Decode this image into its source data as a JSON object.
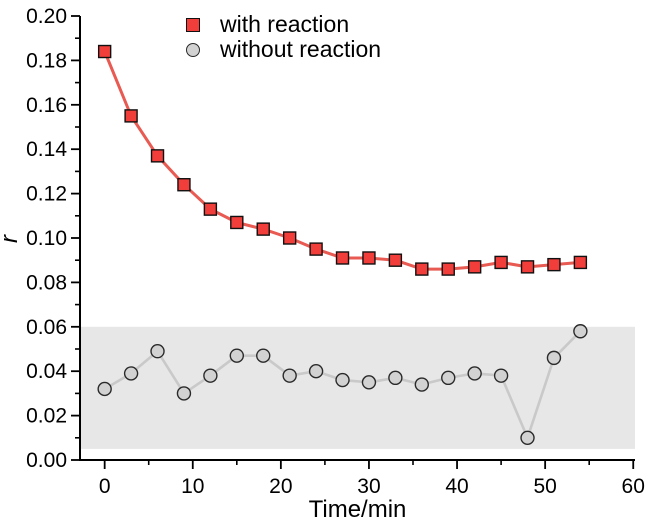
{
  "chart_data": {
    "type": "line",
    "title": "",
    "xlabel": "Time/min",
    "ylabel": "r",
    "xlim": [
      -2.8,
      60.2
    ],
    "ylim": [
      0,
      0.2
    ],
    "grid": false,
    "legend_position": "top-center-inside",
    "x": [
      0,
      3,
      6,
      9,
      12,
      15,
      18,
      21,
      24,
      27,
      30,
      33,
      36,
      39,
      42,
      45,
      48,
      51,
      54
    ],
    "series": [
      {
        "id": "with-reaction",
        "name": "with reaction",
        "marker": "square",
        "line_color": "#e85a52",
        "fill_color": "#f23e3a",
        "edge_color": "#111111",
        "line_width": 3,
        "values": [
          0.184,
          0.155,
          0.137,
          0.124,
          0.113,
          0.107,
          0.104,
          0.1,
          0.095,
          0.091,
          0.091,
          0.09,
          0.086,
          0.086,
          0.087,
          0.089,
          0.087,
          0.088,
          0.089
        ]
      },
      {
        "id": "without-reaction",
        "name": "without reaction",
        "marker": "circle",
        "line_color": "#c9c9c9",
        "fill_color": "#d2d2d2",
        "edge_color": "#2a2a2a",
        "line_width": 2.6,
        "values": [
          0.032,
          0.039,
          0.049,
          0.03,
          0.038,
          0.047,
          0.047,
          0.038,
          0.04,
          0.036,
          0.035,
          0.037,
          0.034,
          0.037,
          0.039,
          0.038,
          0.01,
          0.046,
          0.058
        ]
      }
    ],
    "band": {
      "ymin": 0.005,
      "ymax": 0.06,
      "color": "#e7e7e7"
    },
    "axes": {
      "x": {
        "major": [
          0,
          10,
          20,
          30,
          40,
          50,
          60
        ],
        "labels": [
          "0",
          "10",
          "20",
          "30",
          "40",
          "50",
          "60"
        ],
        "minor": [
          5,
          15,
          25,
          35,
          45,
          55
        ]
      },
      "y": {
        "major": [
          0,
          0.02,
          0.04,
          0.06,
          0.08,
          0.1,
          0.12,
          0.14,
          0.16,
          0.18,
          0.2
        ],
        "labels": [
          "0.00",
          "0.02",
          "0.04",
          "0.06",
          "0.08",
          "0.10",
          "0.12",
          "0.14",
          "0.16",
          "0.18",
          "0.20"
        ],
        "minor": [
          0.01,
          0.03,
          0.05,
          0.07,
          0.09,
          0.11,
          0.13,
          0.15,
          0.17,
          0.19
        ]
      }
    },
    "axis_color": "#000000"
  }
}
